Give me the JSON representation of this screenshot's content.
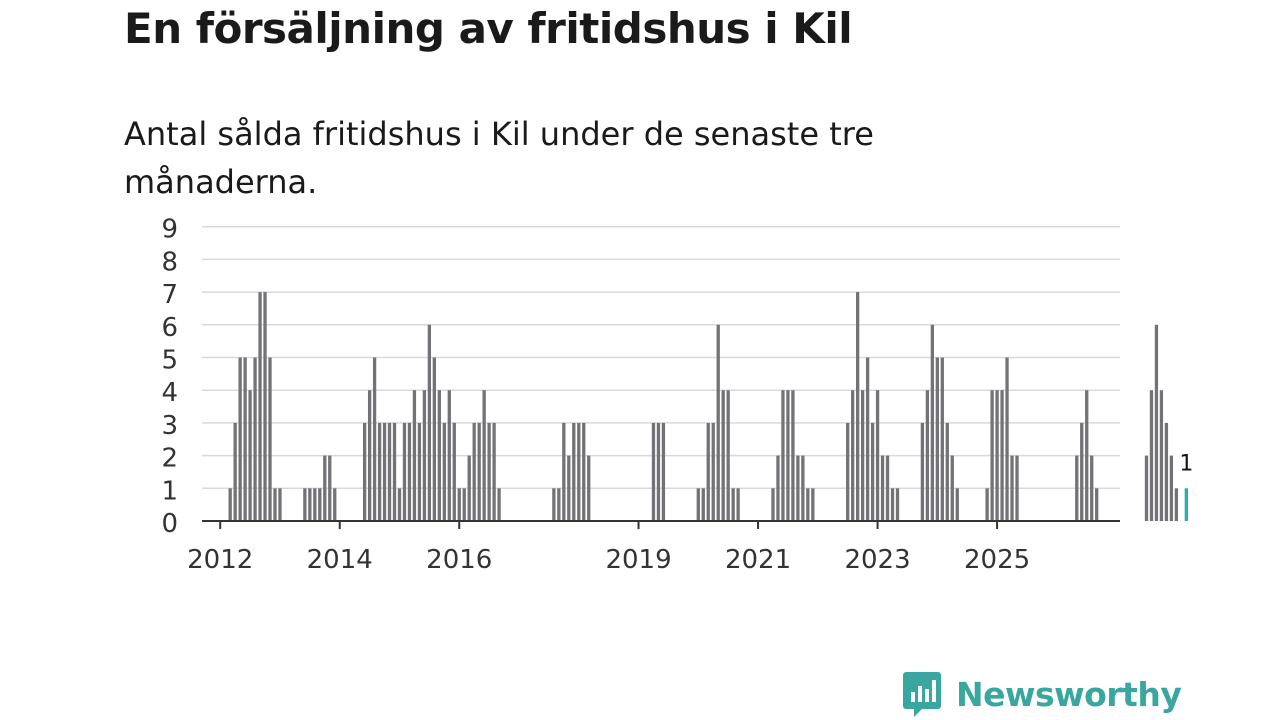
{
  "header": {
    "title": "En försäljning av fritidshus i Kil",
    "subtitle": "Antal sålda fritidshus i Kil under de senaste tre månaderna."
  },
  "brand": {
    "name": "Newsworthy",
    "color": "#3aa6a0"
  },
  "chart_data": {
    "type": "bar",
    "title": "En försäljning av fritidshus i Kil",
    "subtitle": "Antal sålda fritidshus i Kil under de senaste tre månaderna.",
    "frequency": "monthly",
    "first_month": "2011-01",
    "bar_color": "#737276",
    "highlight_color": "#2ab0a8",
    "highlight_last": true,
    "last_value_label": "1",
    "ylim": [
      0,
      9
    ],
    "yticks": [
      "0",
      "1",
      "2",
      "3",
      "4",
      "5",
      "6",
      "7",
      "8",
      "9"
    ],
    "xticks": [
      {
        "month": "2012-01",
        "label": "2012"
      },
      {
        "month": "2014-01",
        "label": "2014"
      },
      {
        "month": "2016-01",
        "label": "2016"
      },
      {
        "month": "2019-01",
        "label": "2019"
      },
      {
        "month": "2021-01",
        "label": "2021"
      },
      {
        "month": "2023-01",
        "label": "2023"
      },
      {
        "month": "2025-01",
        "label": "2025"
      }
    ],
    "grid": true,
    "values": [
      0,
      0,
      0,
      0,
      0,
      0,
      0,
      0,
      0,
      0,
      0,
      0,
      0,
      0,
      1,
      3,
      5,
      5,
      4,
      5,
      7,
      7,
      5,
      1,
      1,
      0,
      0,
      0,
      0,
      1,
      1,
      1,
      1,
      2,
      2,
      1,
      0,
      0,
      0,
      0,
      0,
      3,
      4,
      5,
      3,
      3,
      3,
      3,
      1,
      3,
      3,
      4,
      3,
      4,
      6,
      5,
      4,
      3,
      4,
      3,
      1,
      1,
      2,
      3,
      3,
      4,
      3,
      3,
      1,
      0,
      0,
      0,
      0,
      0,
      0,
      0,
      0,
      0,
      0,
      1,
      1,
      3,
      2,
      3,
      3,
      3,
      2,
      0,
      0,
      0,
      0,
      0,
      0,
      0,
      0,
      0,
      0,
      0,
      0,
      3,
      3,
      3,
      0,
      0,
      0,
      0,
      0,
      0,
      1,
      1,
      3,
      3,
      6,
      4,
      4,
      1,
      1,
      0,
      0,
      0,
      0,
      0,
      0,
      1,
      2,
      4,
      4,
      4,
      2,
      2,
      1,
      1,
      0,
      0,
      0,
      0,
      0,
      0,
      3,
      4,
      7,
      4,
      5,
      3,
      4,
      2,
      2,
      1,
      1,
      0,
      0,
      0,
      0,
      3,
      4,
      6,
      5,
      5,
      3,
      2,
      1,
      0,
      0,
      0,
      0,
      0,
      1,
      4,
      4,
      4,
      5,
      2,
      2,
      0,
      0,
      0,
      0,
      0,
      0,
      0,
      0,
      0,
      0,
      0,
      2,
      3,
      4,
      2,
      1,
      0,
      0,
      0,
      0,
      0,
      0,
      0,
      0,
      0,
      2,
      4,
      6,
      4,
      3,
      2,
      1,
      0,
      1
    ]
  }
}
